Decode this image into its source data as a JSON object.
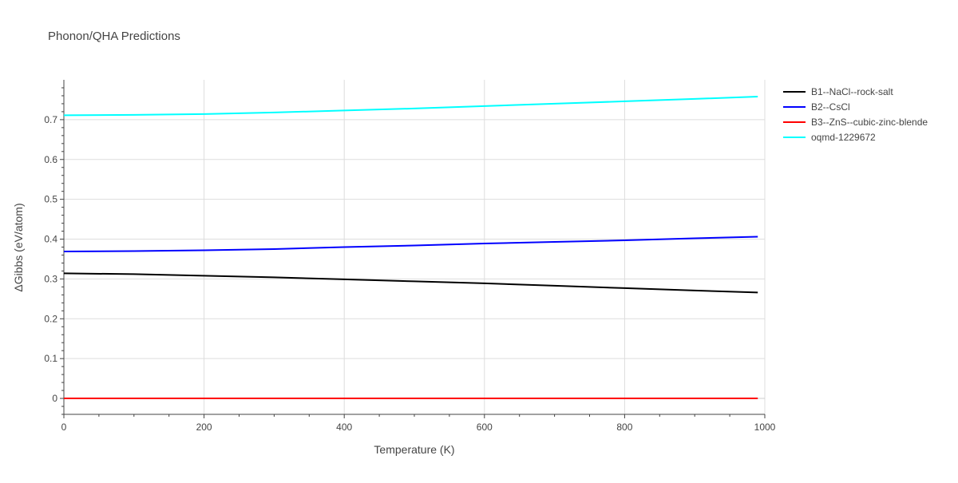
{
  "chart_data": {
    "type": "line",
    "title": "Phonon/QHA Predictions",
    "xlabel": "Temperature (K)",
    "ylabel": "ΔGibbs (eV/atom)",
    "xlim": [
      0,
      1000
    ],
    "ylim": [
      -0.04,
      0.8
    ],
    "xticks": [
      0,
      200,
      400,
      600,
      800,
      1000
    ],
    "yticks": [
      0,
      0.1,
      0.2,
      0.3,
      0.4,
      0.5,
      0.6,
      0.7
    ],
    "grid": true,
    "legend_position": "top-right",
    "series": [
      {
        "name": "B1--NaCl--rock-salt",
        "color": "#000000",
        "x": [
          0,
          100,
          200,
          300,
          400,
          500,
          600,
          700,
          800,
          900,
          990
        ],
        "values": [
          0.314,
          0.312,
          0.308,
          0.304,
          0.299,
          0.294,
          0.289,
          0.283,
          0.277,
          0.271,
          0.266
        ]
      },
      {
        "name": "B2--CsCl",
        "color": "#0000ff",
        "x": [
          0,
          100,
          200,
          300,
          400,
          500,
          600,
          700,
          800,
          900,
          990
        ],
        "values": [
          0.369,
          0.37,
          0.372,
          0.375,
          0.38,
          0.384,
          0.389,
          0.393,
          0.397,
          0.402,
          0.406
        ]
      },
      {
        "name": "B3--ZnS--cubic-zinc-blende",
        "color": "#ff0000",
        "x": [
          0,
          100,
          200,
          300,
          400,
          500,
          600,
          700,
          800,
          900,
          990
        ],
        "values": [
          0,
          0,
          0,
          0,
          0,
          0,
          0,
          0,
          0,
          0,
          0
        ]
      },
      {
        "name": "oqmd-1229672",
        "color": "#00ffff",
        "x": [
          0,
          100,
          200,
          300,
          400,
          500,
          600,
          700,
          800,
          900,
          990
        ],
        "values": [
          0.711,
          0.712,
          0.714,
          0.718,
          0.723,
          0.728,
          0.734,
          0.74,
          0.746,
          0.752,
          0.758
        ]
      }
    ]
  }
}
